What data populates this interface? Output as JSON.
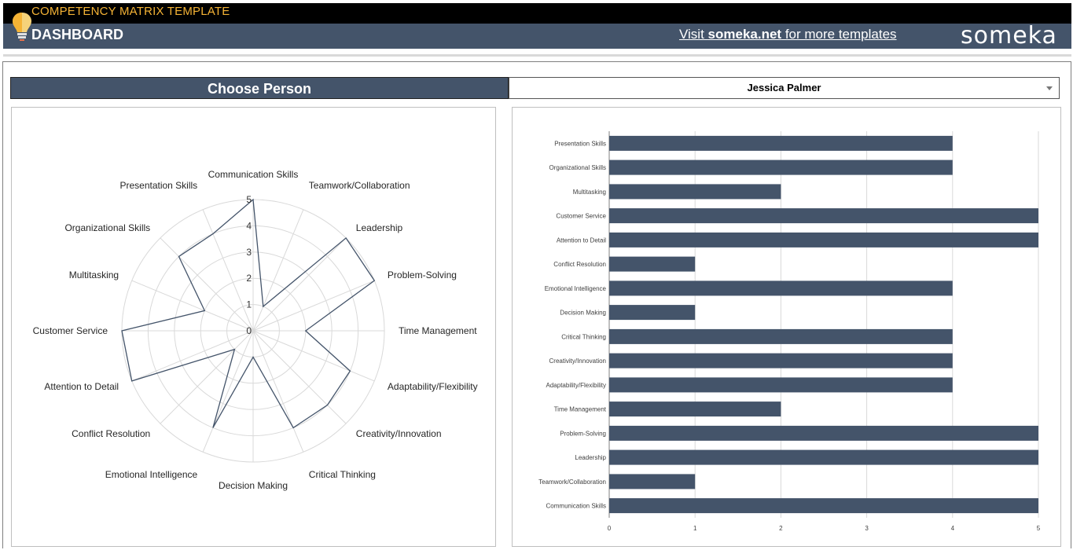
{
  "header": {
    "template_title": "COMPETENCY MATRIX TEMPLATE",
    "page_title": "DASHBOARD",
    "visit_prefix": "Visit ",
    "visit_link": "someka.net",
    "visit_suffix": " for more templates",
    "brand": "someka"
  },
  "selector": {
    "label": "Choose Person",
    "value": "Jessica Palmer"
  },
  "colors": {
    "bar": "#44546a",
    "header": "#44546a",
    "accent": "#f5b335"
  },
  "chart_data": [
    {
      "type": "radar",
      "categories": [
        "Communication Skills",
        "Teamwork/Collaboration",
        "Leadership",
        "Problem-Solving",
        "Time Management",
        "Adaptability/Flexibility",
        "Creativity/Innovation",
        "Critical Thinking",
        "Decision Making",
        "Emotional Intelligence",
        "Conflict Resolution",
        "Attention to Detail",
        "Customer Service",
        "Multitasking",
        "Organizational Skills",
        "Presentation Skills"
      ],
      "values": [
        5,
        1,
        5,
        5,
        2,
        4,
        4,
        4,
        1,
        4,
        1,
        5,
        5,
        2,
        4,
        4
      ],
      "ticks": [
        "0",
        "1",
        "2",
        "3",
        "4",
        "5"
      ],
      "rlim": [
        0,
        5
      ],
      "grid": true
    },
    {
      "type": "bar",
      "orientation": "horizontal",
      "categories": [
        "Presentation Skills",
        "Organizational Skills",
        "Multitasking",
        "Customer Service",
        "Attention to Detail",
        "Conflict Resolution",
        "Emotional Intelligence",
        "Decision Making",
        "Critical Thinking",
        "Creativity/Innovation",
        "Adaptability/Flexibility",
        "Time Management",
        "Problem-Solving",
        "Leadership",
        "Teamwork/Collaboration",
        "Communication Skills"
      ],
      "values": [
        4,
        4,
        2,
        5,
        5,
        1,
        4,
        1,
        4,
        4,
        4,
        2,
        5,
        5,
        1,
        5
      ],
      "xticks": [
        "0",
        "1",
        "2",
        "3",
        "4",
        "5"
      ],
      "xlim": [
        0,
        5
      ],
      "grid": true
    }
  ]
}
